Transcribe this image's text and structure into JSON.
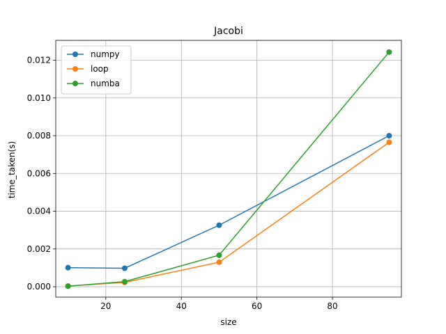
{
  "chart_data": {
    "type": "line",
    "title": "Jacobi",
    "xlabel": "size",
    "ylabel": "time_taken(s)",
    "xlim": [
      6.75,
      98.25
    ],
    "ylim": [
      -0.00055,
      0.01305
    ],
    "xticks": [
      20,
      40,
      60,
      80
    ],
    "xtick_labels": [
      "20",
      "40",
      "60",
      "80"
    ],
    "yticks": [
      0.0,
      0.002,
      0.004,
      0.006,
      0.008,
      0.01,
      0.012
    ],
    "ytick_labels": [
      "0.000",
      "0.002",
      "0.004",
      "0.006",
      "0.008",
      "0.010",
      "0.012"
    ],
    "grid": true,
    "legend_position": "top-left",
    "x": [
      10,
      25,
      50,
      95
    ],
    "series": [
      {
        "name": "numpy",
        "color": "#1f77b4",
        "marker": "circle",
        "values": [
          0.00101,
          0.00098,
          0.00326,
          0.008
        ]
      },
      {
        "name": "loop",
        "color": "#ff7f0e",
        "marker": "circle",
        "values": [
          4e-05,
          0.00023,
          0.0013,
          0.00765
        ]
      },
      {
        "name": "numba",
        "color": "#2ca02c",
        "marker": "circle",
        "values": [
          3e-05,
          0.00027,
          0.00167,
          0.01243
        ]
      }
    ]
  }
}
